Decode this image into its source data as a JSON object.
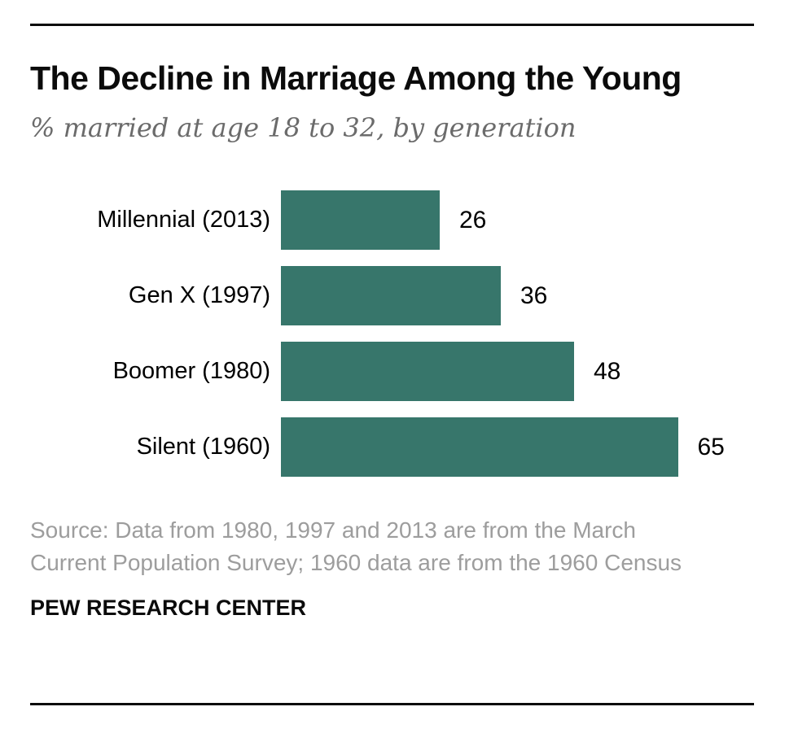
{
  "header": {
    "title": "The Decline in Marriage Among the Young",
    "subtitle": "% married at age 18 to 32, by generation"
  },
  "chart_data": {
    "type": "bar",
    "orientation": "horizontal",
    "title": "The Decline in Marriage Among the Young",
    "subtitle": "% married at age 18 to 32, by generation",
    "categories": [
      "Millennial (2013)",
      "Gen X (1997)",
      "Boomer (1980)",
      "Silent (1960)"
    ],
    "values": [
      26,
      36,
      48,
      65
    ],
    "value_labels": [
      "26",
      "36",
      "48",
      "65"
    ],
    "xlabel": "",
    "ylabel": "",
    "xlim": [
      0,
      65
    ],
    "grid": false,
    "legend": false,
    "bar_color": "#37766b"
  },
  "footer": {
    "source_lines": [
      "Source: Data from 1980, 1997 and 2013 are from the March",
      "Current Population Survey; 1960 data are from the 1960 Census"
    ],
    "branding": "PEW RESEARCH CENTER"
  },
  "colors": {
    "bar": "#37766b",
    "title_text": "#0b0b0b",
    "subtitle_text": "#6b6b6b",
    "source_text": "#9d9d9d",
    "rule": "#0a0a0a"
  }
}
